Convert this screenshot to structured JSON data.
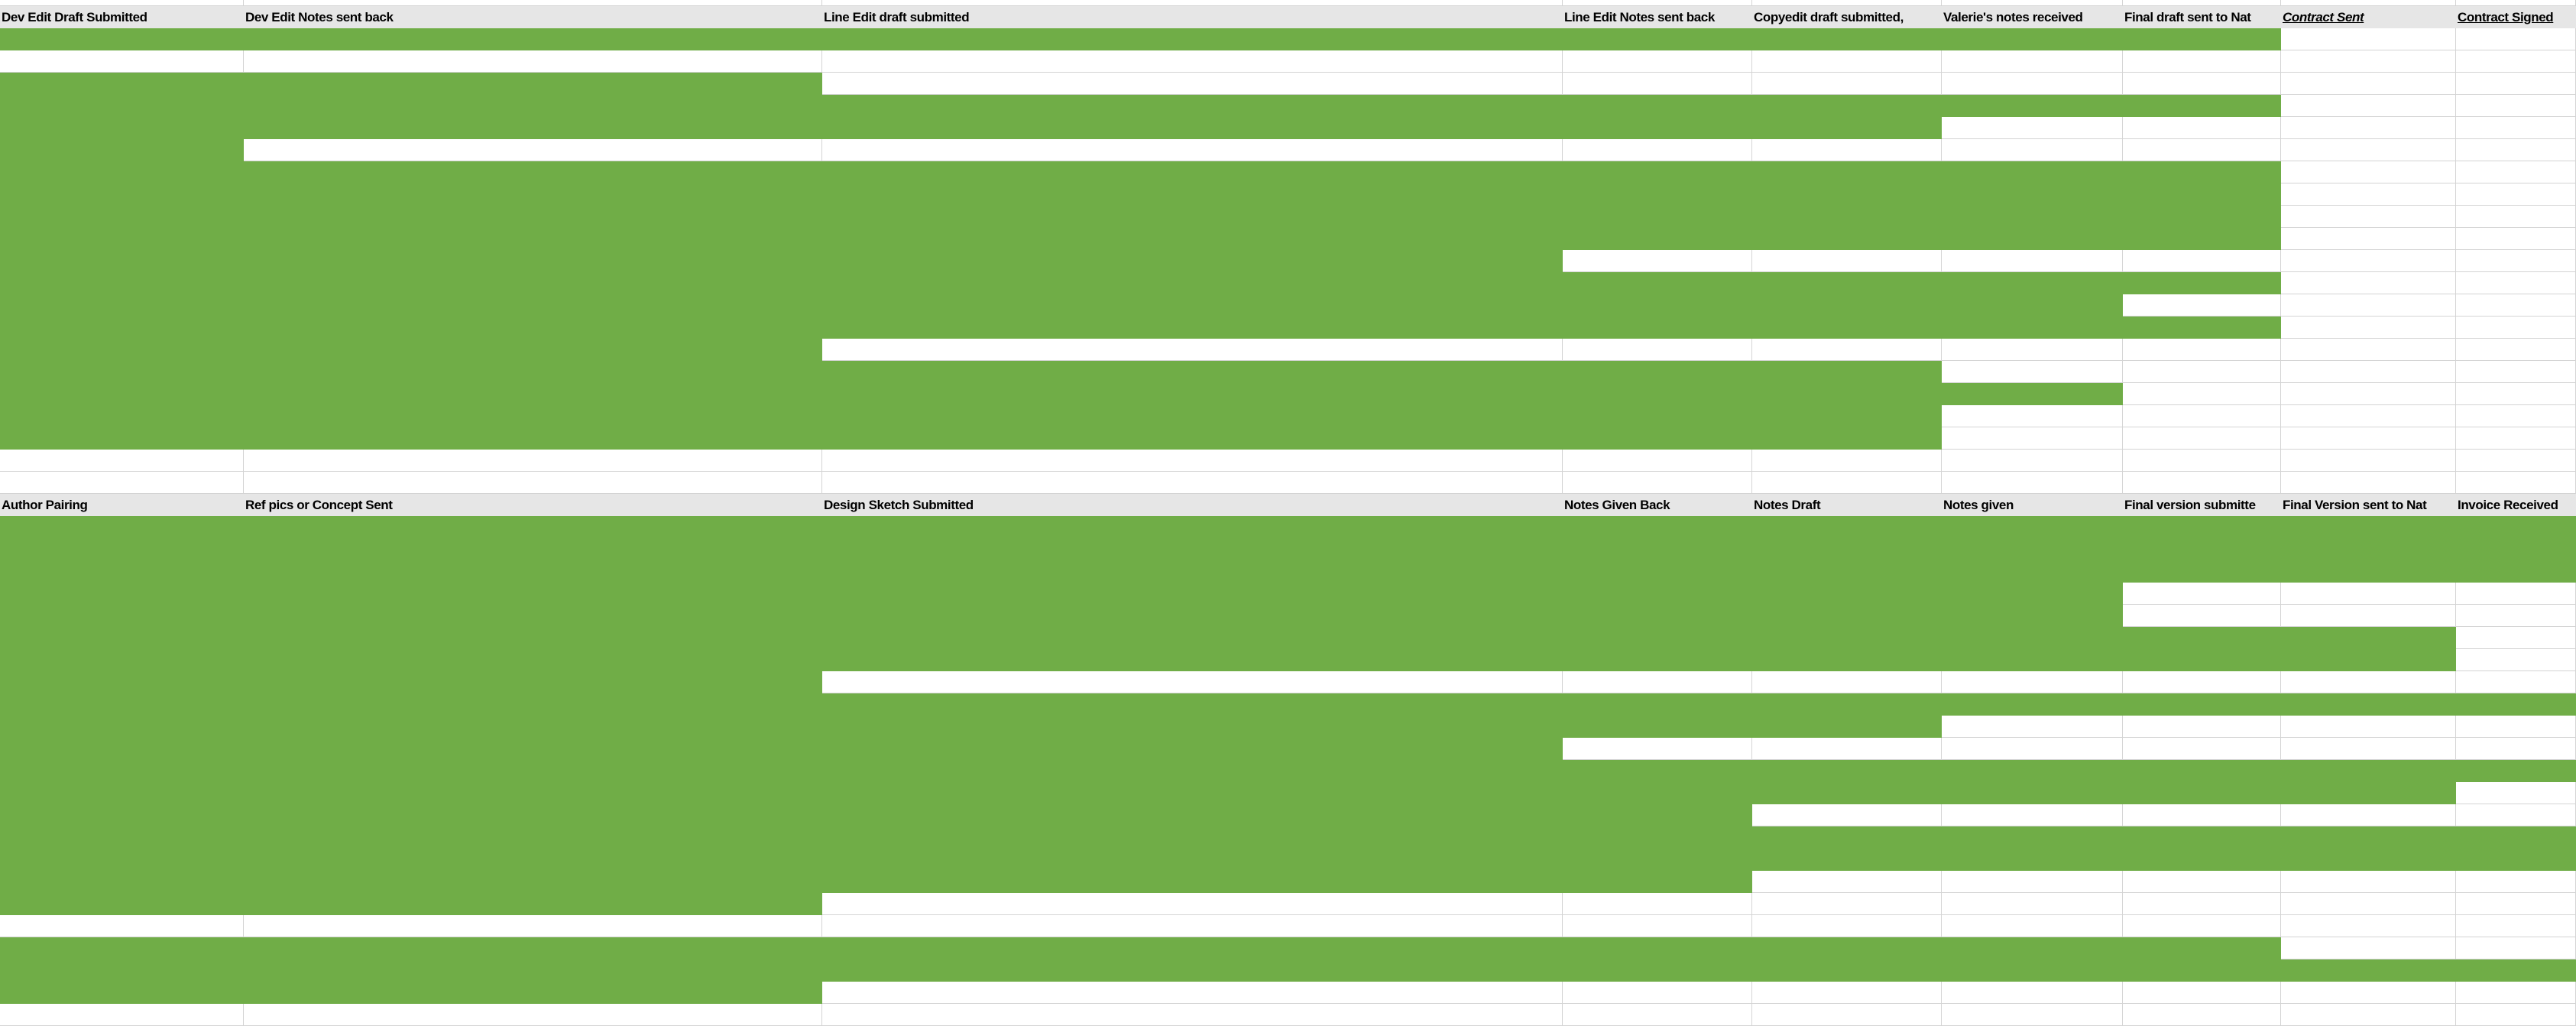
{
  "colors": {
    "complete": "#70ad47",
    "header_bg": "#e6e6e6",
    "gridline": "#d4d4d4"
  },
  "sections": [
    {
      "name": "editing",
      "headers": [
        {
          "label": "Dev Edit Draft Submitted"
        },
        {
          "label": "Dev Edit Notes sent back"
        },
        {
          "label": "Line Edit draft submitted"
        },
        {
          "label": "Line Edit Notes sent back"
        },
        {
          "label": "Copyedit draft submitted,"
        },
        {
          "label": "Valerie's notes received"
        },
        {
          "label": "Final draft sent to Nat"
        },
        {
          "label": "Contract Sent",
          "style": "italic-u"
        },
        {
          "label": "Contract Signed",
          "style": "underline"
        }
      ],
      "rows_completed_stages": [
        7,
        0,
        2,
        7,
        5,
        1,
        7,
        7,
        7,
        7,
        3,
        7,
        6,
        7,
        2,
        5,
        6,
        5,
        5,
        0,
        0
      ]
    },
    {
      "name": "design",
      "headers": [
        {
          "label": "Author Pairing"
        },
        {
          "label": "Ref pics or Concept Sent"
        },
        {
          "label": "Design Sketch Submitted"
        },
        {
          "label": "Notes Given Back"
        },
        {
          "label": "Notes Draft"
        },
        {
          "label": "Notes given"
        },
        {
          "label": "Final version submitte"
        },
        {
          "label": "Final Version sent to Nat"
        },
        {
          "label": "Invoice Received"
        }
      ],
      "rows_completed_stages": [
        9,
        9,
        9,
        6,
        6,
        8,
        8,
        2,
        9,
        5,
        3,
        9,
        8,
        4,
        9,
        9,
        4,
        2,
        0,
        7,
        9,
        2,
        0
      ]
    }
  ]
}
